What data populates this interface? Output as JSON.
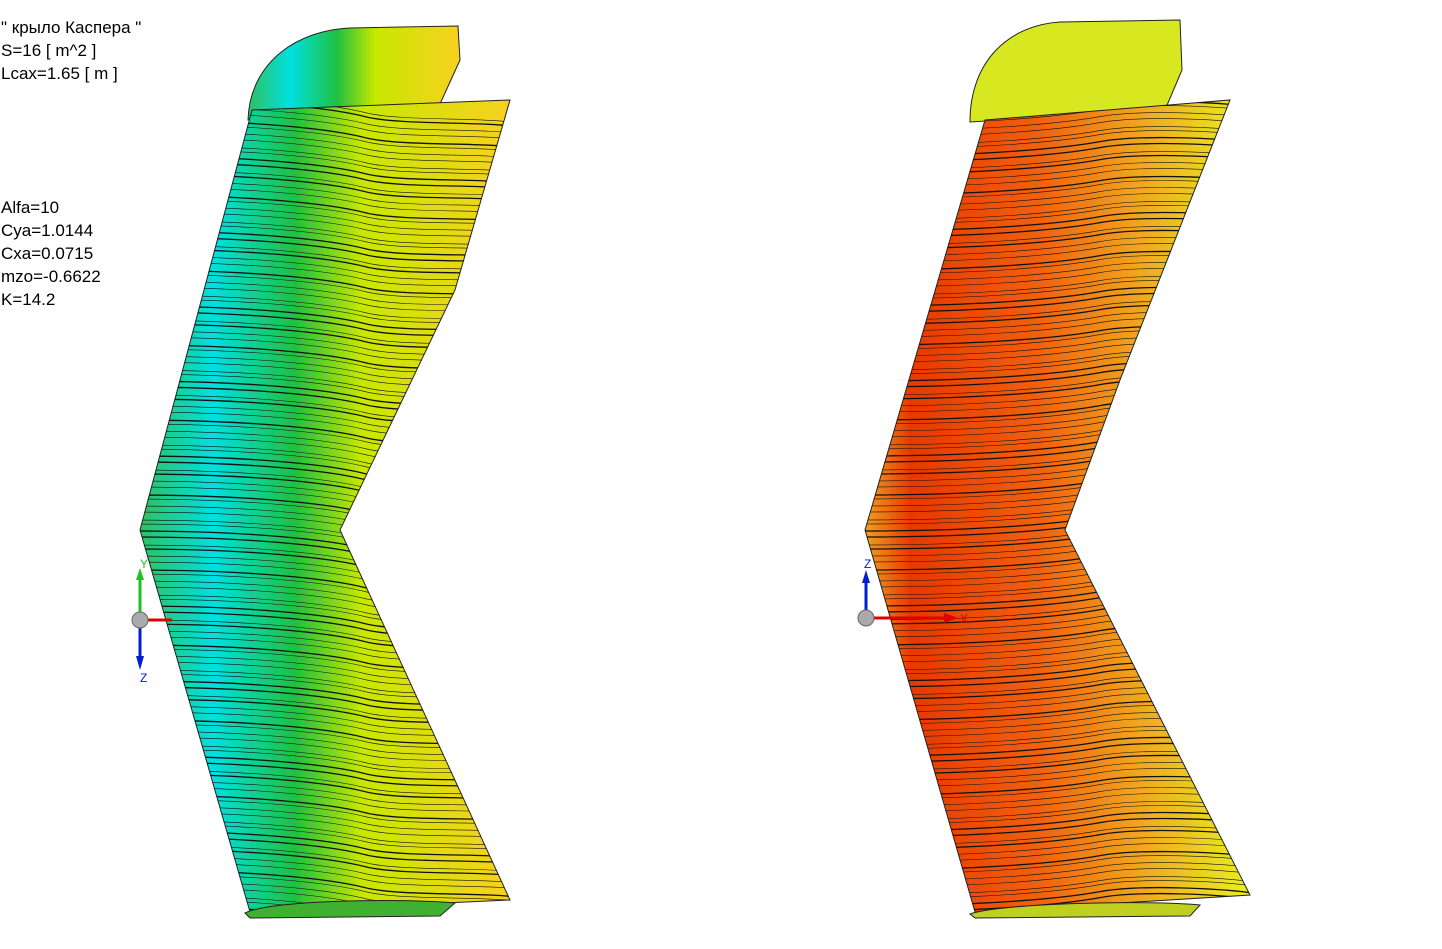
{
  "header": {
    "title": "\" крыло Каспера \"",
    "area": "S=16 [ m^2 ]",
    "mac": "Lcax=1.65 [ m ]"
  },
  "coefficients": {
    "alfa": "Alfa=10",
    "cya": "Cya=1.0144",
    "cxa": "Cxa=0.0715",
    "mzo": "mzo=-0.6622",
    "k": "K=14.2"
  },
  "left_view": {
    "axes": {
      "up": "Y",
      "down": "Z"
    },
    "colors": [
      "#00e0e0",
      "#20d040",
      "#e8f000",
      "#f8d020"
    ]
  },
  "right_view": {
    "axes": {
      "up": "Z",
      "right": "X"
    },
    "colors": [
      "#e83800",
      "#f07010",
      "#f0b020",
      "#e8f020"
    ]
  },
  "axis_colors": {
    "x": "#e00000",
    "y": "#20c020",
    "z": "#0020d0"
  }
}
